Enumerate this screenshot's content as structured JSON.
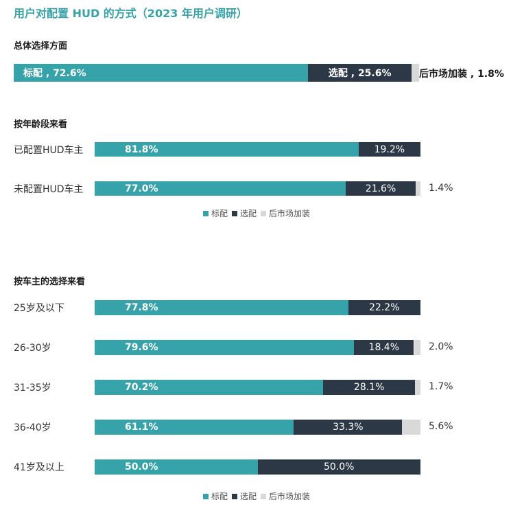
{
  "title": "用户对配置 HUD 的方式（2023 年用户调研）",
  "colors": {
    "standard": "#36a3aa",
    "optional": "#2d3847",
    "aftermarket": "#d9d9d9"
  },
  "legend": [
    "标配",
    "选配",
    "后市场加装"
  ],
  "chart_data": [
    {
      "type": "bar",
      "title": "总体选择方面",
      "stacked": true,
      "orientation": "horizontal",
      "series": [
        {
          "name": "标配",
          "values": [
            72.6
          ],
          "labels": [
            "标配 , 72.6%"
          ]
        },
        {
          "name": "选配",
          "values": [
            25.6
          ],
          "labels": [
            "选配 , 25.6%"
          ]
        },
        {
          "name": "后市场加装",
          "values": [
            1.8
          ],
          "labels": [
            "后市场加装 , 1.8%"
          ]
        }
      ]
    },
    {
      "type": "bar",
      "title": "按年龄段来看",
      "stacked": true,
      "orientation": "horizontal",
      "categories": [
        "已配置HUD车主",
        "未配置HUD车主"
      ],
      "series": [
        {
          "name": "标配",
          "values": [
            81.8,
            77.0
          ],
          "labels": [
            "81.8%",
            "77.0%"
          ]
        },
        {
          "name": "选配",
          "values": [
            19.2,
            21.6
          ],
          "labels": [
            "19.2%",
            "21.6%"
          ]
        },
        {
          "name": "后市场加装",
          "values": [
            0,
            1.4
          ],
          "labels": [
            "",
            "1.4%"
          ]
        }
      ],
      "legend": [
        "标配",
        "选配",
        "后市场加装"
      ]
    },
    {
      "type": "bar",
      "title": "按车主的选择来看",
      "stacked": true,
      "orientation": "horizontal",
      "categories": [
        "25岁及以下",
        "26-30岁",
        "31-35岁",
        "36-40岁",
        "41岁及以上"
      ],
      "series": [
        {
          "name": "标配",
          "values": [
            77.8,
            79.6,
            70.2,
            61.1,
            50.0
          ],
          "labels": [
            "77.8%",
            "79.6%",
            "70.2%",
            "61.1%",
            "50.0%"
          ]
        },
        {
          "name": "选配",
          "values": [
            22.2,
            18.4,
            28.1,
            33.3,
            50.0
          ],
          "labels": [
            "22.2%",
            "18.4%",
            "28.1%",
            "33.3%",
            "50.0%"
          ]
        },
        {
          "name": "后市场加装",
          "values": [
            0,
            2.0,
            1.7,
            5.6,
            0
          ],
          "labels": [
            "",
            "2.0%",
            "1.7%",
            "5.6%",
            ""
          ]
        }
      ],
      "legend": [
        "标配",
        "选配",
        "后市场加装"
      ]
    }
  ]
}
